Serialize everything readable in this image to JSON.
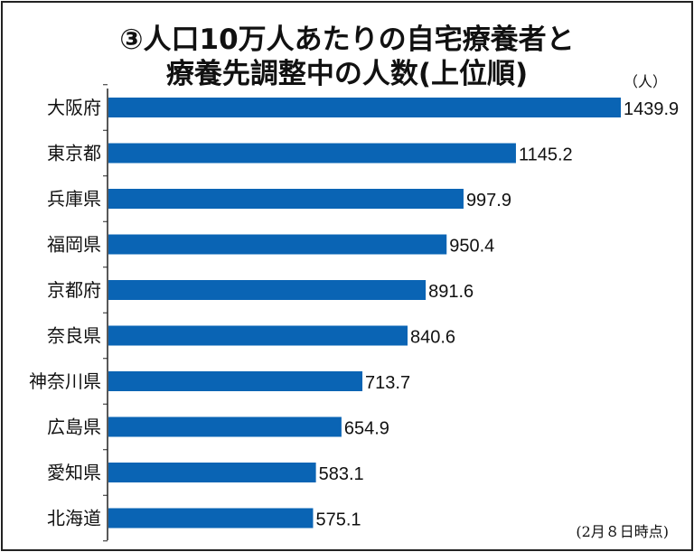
{
  "chart_data": {
    "type": "bar",
    "orientation": "horizontal",
    "title_line1": "③人口10万人あたりの自宅療養者と",
    "title_line2": "療養先調整中の人数(上位順)",
    "unit_label": "（人）",
    "note": "(2月８日時点)",
    "categories": [
      "大阪府",
      "東京都",
      "兵庫県",
      "福岡県",
      "京都府",
      "奈良県",
      "神奈川県",
      "広島県",
      "愛知県",
      "北海道"
    ],
    "values": [
      1439.9,
      1145.2,
      997.9,
      950.4,
      891.6,
      840.6,
      713.7,
      654.9,
      583.1,
      575.1
    ],
    "value_labels": [
      "1439.9",
      "1145.2",
      "997.9",
      "950.4",
      "891.6",
      "840.6",
      "713.7",
      "654.9",
      "583.1",
      "575.1"
    ],
    "xlim": [
      0,
      1439.9
    ],
    "grid": false,
    "bar_color": "#0a64b4"
  }
}
